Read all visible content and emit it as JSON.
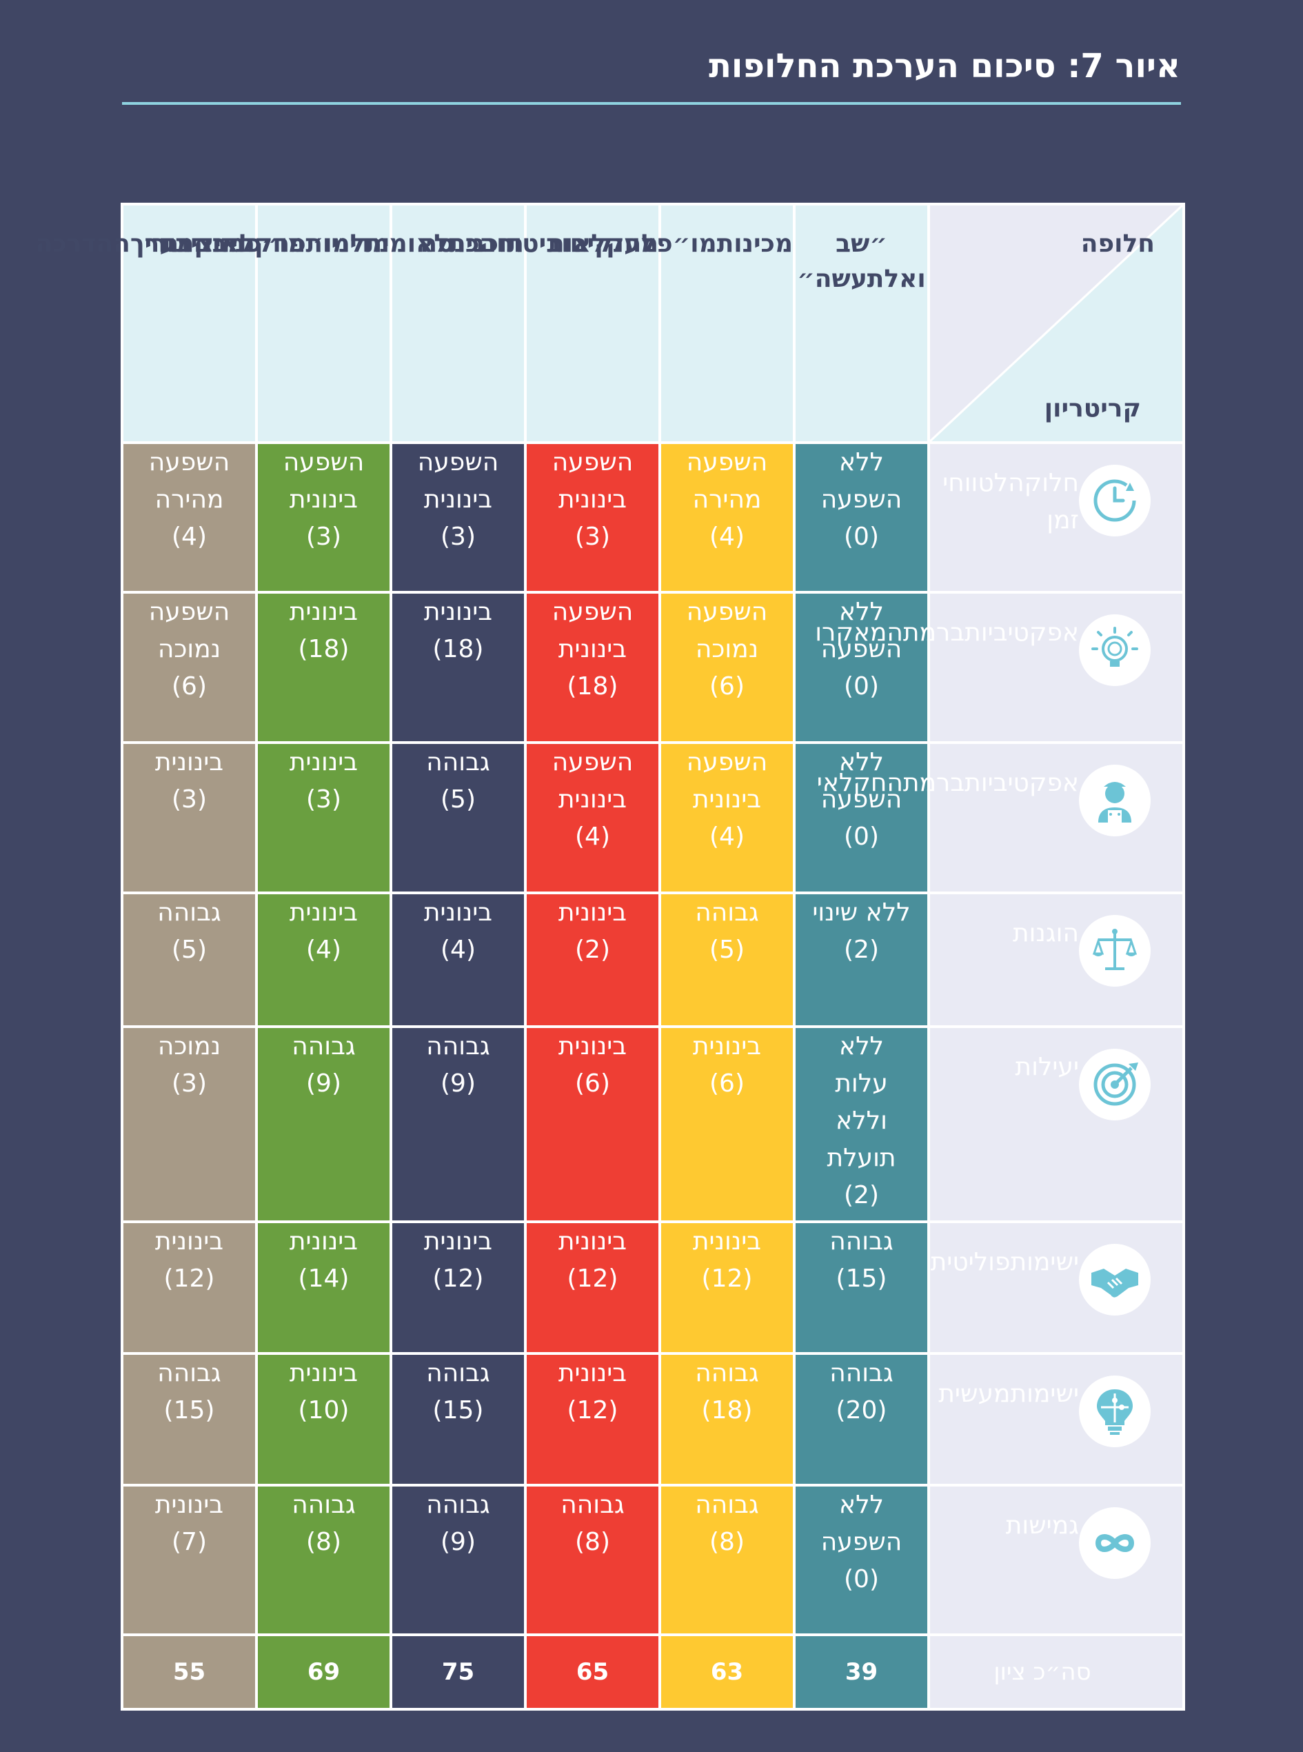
{
  "title": "איור 7: סיכום הערכת החלופות",
  "corner": {
    "alternative": "חלופה",
    "criterion": "קריטריון"
  },
  "colors": {
    "background": "#404664",
    "header": "#def1f5",
    "criterion_bg": "#e9eaf4",
    "alternatives": [
      "#4a8f9b",
      "#fec931",
      "#ee3e34",
      "#404664",
      "#6a9f40",
      "#a79a87"
    ]
  },
  "alternatives": [
    {
      "lines": [
        "״שב ואל",
        "תעשה״"
      ]
    },
    {
      "lines": [
        "מכינות",
        "מו״פ",
        "לחקלאות"
      ]
    },
    {
      "lines": [
        "מענקים",
        "וביטוח",
        "הכנסה"
      ]
    },
    {
      "lines": [
        "תוכנית",
        "לאומית",
        "למו״פ",
        "חקלאי",
        "ציבורי"
      ]
    },
    {
      "lines": [
        "מדיניות",
        "מו״פ",
        "מבוזרת"
      ]
    },
    {
      "lines": [
        "חיזוק",
        "מערך",
        "ההדרכה"
      ]
    }
  ],
  "rows": [
    {
      "icon": "clock-icon",
      "criterion": [
        "חלוקה",
        "לטווחי זמן"
      ],
      "height": 133,
      "cells": [
        [
          "ללא",
          "השפעה",
          "(0)"
        ],
        [
          "השפעה",
          "מהירה",
          "(4)"
        ],
        [
          "השפעה",
          "בינונית",
          "(3)"
        ],
        [
          "השפעה",
          "בינונית",
          "(3)"
        ],
        [
          "השפעה",
          "בינונית",
          "(3)"
        ],
        [
          "השפעה",
          "מהירה",
          "(4)"
        ]
      ]
    },
    {
      "icon": "lightbulb-icon",
      "criterion": [
        "אפקטיביות",
        "ברמת",
        "המאקרו"
      ],
      "height": 134,
      "cells": [
        [
          "ללא",
          "השפעה",
          "(0)"
        ],
        [
          "השפעה",
          "נמוכה",
          "(6)"
        ],
        [
          "השפעה",
          "בינונית",
          "(18)"
        ],
        [
          "בינונית",
          "(18)"
        ],
        [
          "בינונית",
          "(18)"
        ],
        [
          "השפעה",
          "נמוכה",
          "(6)"
        ]
      ]
    },
    {
      "icon": "farmer-icon",
      "criterion": [
        "אפקטיביות",
        "ברמת",
        "החקלאי"
      ],
      "height": 134,
      "cells": [
        [
          "ללא",
          "השפעה",
          "(0)"
        ],
        [
          "השפעה",
          "בינונית",
          "(4)"
        ],
        [
          "השפעה",
          "בינונית",
          "(4)"
        ],
        [
          "גבוהה",
          "(5)"
        ],
        [
          "בינונית",
          "(3)"
        ],
        [
          "בינונית",
          "(3)"
        ]
      ]
    },
    {
      "icon": "scales-icon",
      "criterion": [
        "הוגנות"
      ],
      "height": 110,
      "cells": [
        [
          "ללא שינוי",
          "(2)"
        ],
        [
          "גבוהה",
          "(5)"
        ],
        [
          "בינונית",
          "(2)"
        ],
        [
          "בינונית",
          "(4)"
        ],
        [
          "בינונית",
          "(4)"
        ],
        [
          "גבוהה",
          "(5)"
        ]
      ]
    },
    {
      "icon": "target-icon",
      "criterion": [
        "יעילות"
      ],
      "height": 199,
      "cells": [
        [
          "ללא",
          "עלות",
          "וללא",
          "תועלת",
          "(2)"
        ],
        [
          "בינונית",
          "(6)"
        ],
        [
          "בינונית",
          "(6)"
        ],
        [
          "גבוהה",
          "(9)"
        ],
        [
          "גבוהה",
          "(9)"
        ],
        [
          "נמוכה",
          "(3)"
        ]
      ]
    },
    {
      "icon": "handshake-icon",
      "criterion": [
        "ישימות",
        "פוליטית"
      ],
      "height": 107,
      "cells": [
        [
          "גבוהה",
          "(15)"
        ],
        [
          "בינונית",
          "(12)"
        ],
        [
          "בינונית",
          "(12)"
        ],
        [
          "בינונית",
          "(12)"
        ],
        [
          "בינונית",
          "(14)"
        ],
        [
          "בינונית",
          "(12)"
        ]
      ]
    },
    {
      "icon": "puzzle-bulb-icon",
      "criterion": [
        "ישימות",
        "מעשית"
      ],
      "height": 107,
      "cells": [
        [
          "גבוהה",
          "(20)"
        ],
        [
          "גבוהה",
          "(18)"
        ],
        [
          "בינונית",
          "(12)"
        ],
        [
          "גבוהה",
          "(15)"
        ],
        [
          "בינונית",
          "(10)"
        ],
        [
          "גבוהה",
          "(15)"
        ]
      ]
    },
    {
      "icon": "infinity-icon",
      "criterion": [
        "גמישות"
      ],
      "height": 133,
      "cells": [
        [
          "ללא",
          "השפעה",
          "(0)"
        ],
        [
          "גבוהה",
          "(8)"
        ],
        [
          "גבוהה",
          "(8)"
        ],
        [
          "גבוהה",
          "(9)"
        ],
        [
          "גבוהה",
          "(8)"
        ],
        [
          "בינונית",
          "(7)"
        ]
      ]
    }
  ],
  "total": {
    "label": "סה״כ ציון",
    "values": [
      "39",
      "63",
      "65",
      "75",
      "69",
      "55"
    ]
  }
}
